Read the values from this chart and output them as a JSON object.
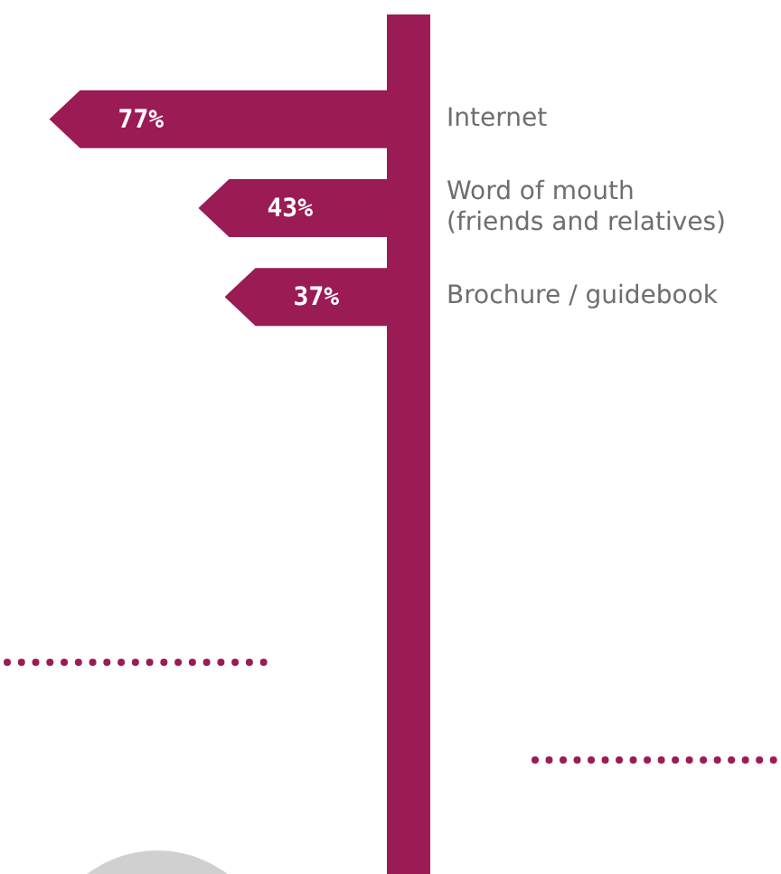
{
  "chart_data": {
    "type": "bar",
    "orientation": "horizontal",
    "categories": [
      "Internet",
      "Word of mouth\n(friends and relatives)",
      "Brochure / guidebook"
    ],
    "values": [
      77,
      43,
      37
    ],
    "color": "#9b1b55",
    "value_labels": [
      "77%",
      "43%",
      "37%"
    ],
    "grid": false,
    "legend": false
  }
}
